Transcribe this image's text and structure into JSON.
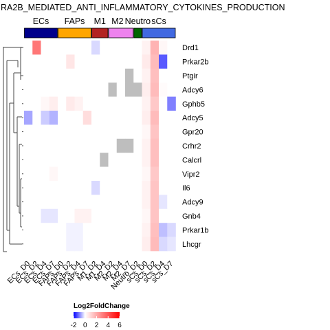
{
  "chart_data": {
    "type": "heatmap",
    "title": "RA2B_MEDIATED_ANTI_INFLAMMATORY_CYTOKINES_PRODUCTION",
    "columns": [
      "ECs_D0",
      "ECs_D2",
      "ECs_D4",
      "ECs_D7",
      "FAPs_D0",
      "FAPs_D2",
      "FAPs_D4",
      "FAPs_D7",
      "M1_D2",
      "M1_D4",
      "M2_D2",
      "M2_D4",
      "M2_D7",
      "Neutro_D2",
      "sCs_D0",
      "sCs_D2",
      "sCs_D4",
      "sCs_D7"
    ],
    "rows": [
      "Drd1",
      "Prkar2b",
      "Ptgir",
      "Adcy6",
      "Gphb5",
      "Adcy5",
      "Gpr20",
      "Crhr2",
      "Calcrl",
      "Vipr2",
      "Il6",
      "Adcy9",
      "Gnb4",
      "Prkar1b",
      "Lhcgr"
    ],
    "values": [
      [
        0,
        3.2,
        0,
        0,
        0,
        0,
        0,
        0,
        -0.3,
        0,
        0,
        0,
        0,
        0,
        0.3,
        1.8,
        0.2,
        0
      ],
      [
        0,
        0,
        0,
        0,
        0,
        0.6,
        0,
        0,
        0,
        0,
        0,
        0,
        0,
        0,
        0.5,
        1.6,
        -1.3,
        0
      ],
      [
        0,
        0,
        0,
        0,
        0,
        0,
        0,
        0,
        0,
        0,
        0,
        0,
        null,
        0,
        0.3,
        1.5,
        0,
        0
      ],
      [
        0,
        0,
        0,
        0,
        0,
        0,
        0,
        0,
        0,
        0,
        null,
        0,
        null,
        null,
        0.4,
        1.6,
        0.1,
        0
      ],
      [
        0,
        0,
        0.2,
        0.4,
        0,
        0.5,
        0.3,
        0,
        0,
        0,
        0,
        0,
        0,
        0,
        0.3,
        1.3,
        0,
        -1.0
      ],
      [
        -0.7,
        0,
        -0.4,
        -0.6,
        0,
        0,
        0,
        0.8,
        0,
        0,
        0,
        0,
        0,
        0,
        0.4,
        1.6,
        0,
        0
      ],
      [
        0,
        0,
        0,
        0,
        0,
        0,
        0,
        0,
        0,
        0,
        0,
        0,
        0,
        0,
        0.2,
        1.4,
        0,
        0
      ],
      [
        0,
        0,
        0,
        0,
        0,
        0,
        0,
        0,
        0,
        0,
        0,
        null,
        null,
        0,
        0.3,
        1.5,
        0,
        0
      ],
      [
        0,
        0,
        0,
        0,
        0,
        0,
        0,
        0,
        0,
        null,
        0,
        0,
        0,
        0,
        0.3,
        1.5,
        0,
        0
      ],
      [
        0,
        0,
        0,
        0.2,
        0,
        0,
        0,
        0,
        0,
        0,
        0,
        0,
        0,
        0,
        0.2,
        1.3,
        0,
        0
      ],
      [
        0,
        0,
        0,
        0,
        0,
        0,
        0,
        0,
        -0.3,
        0,
        0,
        0,
        0,
        0,
        0.3,
        1.4,
        0,
        0
      ],
      [
        0,
        0,
        0,
        0,
        0,
        0,
        0,
        0,
        0,
        0,
        0,
        0,
        0,
        0,
        0.3,
        1.4,
        -0.2,
        0
      ],
      [
        0,
        0,
        -0.2,
        -0.2,
        0,
        0,
        0.3,
        0.3,
        0,
        0,
        0,
        0,
        0,
        0,
        0.2,
        1.4,
        0,
        0
      ],
      [
        0,
        0,
        0,
        0,
        0,
        -0.1,
        -0.1,
        0,
        0,
        0,
        0,
        0,
        0,
        0,
        0.3,
        1.5,
        -0.5,
        -0.3
      ],
      [
        0,
        0,
        0,
        0,
        0,
        -0.1,
        -0.1,
        0,
        0,
        0,
        0,
        0,
        0,
        0,
        0.4,
        1.6,
        -0.3,
        -0.2
      ]
    ],
    "column_groups": [
      {
        "label": "ECs",
        "start": 0,
        "end": 3,
        "color": "#00008b"
      },
      {
        "label": "FAPs",
        "start": 4,
        "end": 7,
        "color": "#ffa500"
      },
      {
        "label": "M1",
        "start": 8,
        "end": 9,
        "color": "#b22222"
      },
      {
        "label": "M2",
        "start": 10,
        "end": 12,
        "color": "#ee82ee"
      },
      {
        "label": "Neutro",
        "start": 13,
        "end": 13,
        "color": "#006400"
      },
      {
        "label": "sCs",
        "start": 14,
        "end": 17,
        "color": "#4169e1"
      }
    ],
    "legend": {
      "title": "Log2FoldChange",
      "ticks": [
        -2,
        0,
        2,
        4,
        6
      ],
      "min": -2,
      "max": 6,
      "low_color": "#0000ff",
      "mid_color": "#ffffff",
      "high_color": "#ff0000",
      "na_color": "#bebebe",
      "placement": "bottom-left"
    },
    "dendrogram": "rows"
  }
}
